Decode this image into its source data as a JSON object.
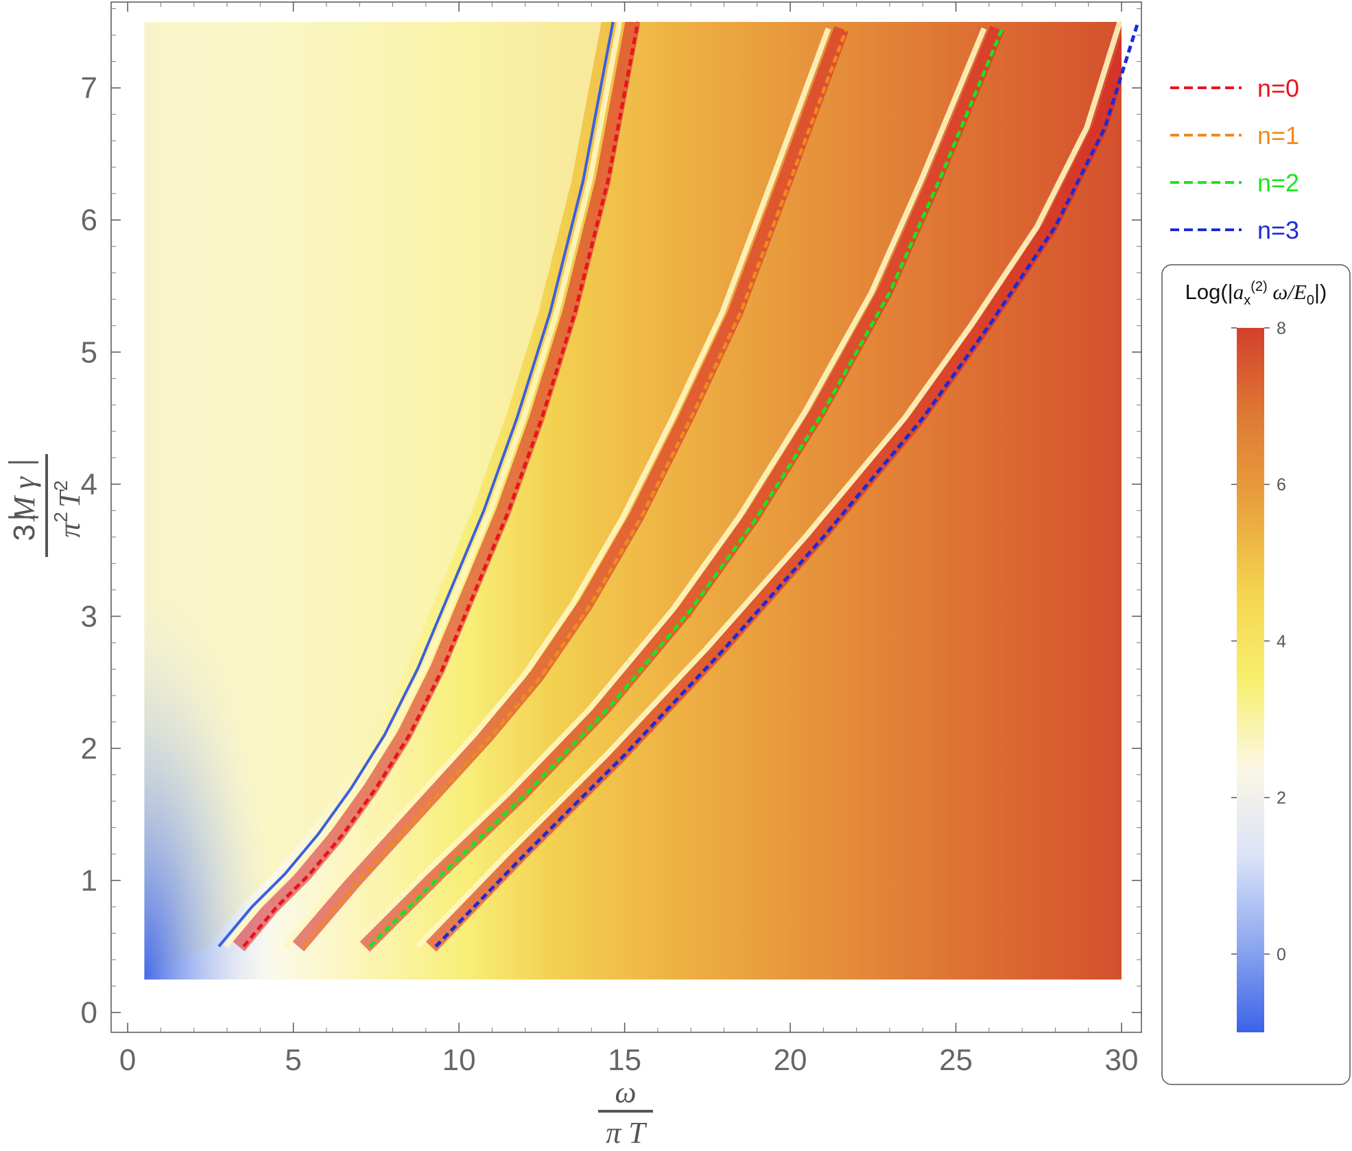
{
  "chart_data": {
    "type": "heatmap",
    "title": "",
    "xlabel": {
      "numerator": "ω",
      "denominator": "π T"
    },
    "ylabel": {
      "numerator_prefix": "3",
      "numerator_symbol": "M γ",
      "denominator_pi": "π",
      "denominator_exp": "2",
      "denominator_T": "T",
      "denominator_T_exp": "2"
    },
    "xlim": [
      -0.5,
      30.6
    ],
    "ylim": [
      -0.15,
      7.65
    ],
    "xticks": [
      0,
      5,
      10,
      15,
      20,
      25,
      30
    ],
    "yticks": [
      0,
      1,
      2,
      3,
      4,
      5,
      6,
      7
    ],
    "data_extent": {
      "x": [
        0.5,
        30
      ],
      "y": [
        0.25,
        7.5
      ]
    },
    "colorbar": {
      "title": "Log(|a_x^(2) ω/E_0|)",
      "title_parts": {
        "pre": "Log(|",
        "a": "a",
        "sub_x": "x",
        "sup": "(2)",
        "mid": " ω/",
        "E": "E",
        "sub_0": "0",
        "post": "|)"
      },
      "range": [
        -1,
        8
      ],
      "ticks": [
        0,
        2,
        4,
        6,
        8
      ],
      "palette": [
        "#3b63e8",
        "#8ea8f0",
        "#dbe3f8",
        "#fbf7e4",
        "#f7f06e",
        "#f5d44f",
        "#e9a23c",
        "#de7a34",
        "#d4402c"
      ]
    },
    "legend": {
      "placement": "right",
      "entries": [
        {
          "label": "n=0",
          "color": "#e8141e"
        },
        {
          "label": "n=1",
          "color": "#f08a1c"
        },
        {
          "label": "n=2",
          "color": "#19e619"
        },
        {
          "label": "n=3",
          "color": "#1c2ad6"
        }
      ]
    },
    "series": [
      {
        "name": "n=0",
        "color": "#e8141e",
        "style": "dashed",
        "x": [
          3.5,
          4.5,
          5.5,
          6.5,
          7.5,
          8.5,
          9.5,
          10.5,
          11.5,
          12.5,
          13.5,
          14.5,
          15.4
        ],
        "y": [
          0.5,
          0.8,
          1.05,
          1.35,
          1.7,
          2.1,
          2.6,
          3.2,
          3.8,
          4.5,
          5.3,
          6.3,
          7.5
        ]
      },
      {
        "name": "n=1",
        "color": "#f08a1c",
        "style": "dashed",
        "x": [
          5.3,
          7.0,
          9.0,
          11.0,
          12.5,
          14.0,
          15.5,
          17.0,
          18.5,
          20.0,
          21.7
        ],
        "y": [
          0.5,
          1.0,
          1.55,
          2.1,
          2.55,
          3.1,
          3.75,
          4.5,
          5.3,
          6.3,
          7.45
        ]
      },
      {
        "name": "n=2",
        "color": "#19e619",
        "style": "dashed",
        "x": [
          7.3,
          9.5,
          12.0,
          14.5,
          17.0,
          19.0,
          21.0,
          23.0,
          24.5,
          26.4
        ],
        "y": [
          0.5,
          1.05,
          1.65,
          2.3,
          3.05,
          3.75,
          4.55,
          5.45,
          6.3,
          7.45
        ]
      },
      {
        "name": "n=3",
        "color": "#1c2ad6",
        "style": "dashed",
        "x": [
          9.3,
          12.0,
          15.0,
          18.0,
          21.0,
          24.0,
          26.0,
          28.0,
          29.5,
          30.5
        ],
        "y": [
          0.5,
          1.2,
          1.95,
          2.75,
          3.6,
          4.5,
          5.2,
          5.95,
          6.7,
          7.5
        ]
      }
    ]
  }
}
